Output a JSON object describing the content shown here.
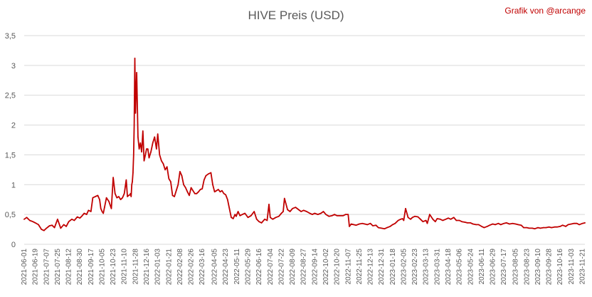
{
  "colors": {
    "series": "#c00000",
    "credit": "#c00000",
    "grid": "#d9d9d9",
    "text": "#595959"
  },
  "credit": "Grafik von @arcange",
  "chart_data": {
    "type": "line",
    "title": "HIVE Preis (USD)",
    "xlabel": "",
    "ylabel": "",
    "ylim": [
      0,
      3.5
    ],
    "grid": true,
    "legend": "none",
    "y_ticks": [
      "0",
      "0,5",
      "1",
      "1,5",
      "2",
      "2,5",
      "3",
      "3,5"
    ],
    "x_tick_labels": [
      "2021-06-01",
      "2021-06-19",
      "2021-07-07",
      "2021-07-25",
      "2021-08-12",
      "2021-08-30",
      "2021-09-17",
      "2021-10-05",
      "2021-10-23",
      "2021-11-10",
      "2021-11-28",
      "2021-12-16",
      "2022-01-03",
      "2022-01-21",
      "2022-02-08",
      "2022-02-26",
      "2022-03-16",
      "2022-04-05",
      "2022-04-23",
      "2022-05-11",
      "2022-05-29",
      "2022-06-16",
      "2022-07-04",
      "2022-07-22",
      "2022-08-09",
      "2022-08-27",
      "2022-09-14",
      "2022-10-02",
      "2022-10-20",
      "2022-11-07",
      "2022-11-25",
      "2022-12-13",
      "2022-12-31",
      "2023-01-18",
      "2023-02-05",
      "2023-02-23",
      "2023-03-13",
      "2023-03-31",
      "2023-04-18",
      "2023-05-06",
      "2023-05-24",
      "2023-06-11",
      "2023-06-29",
      "2023-07-17",
      "2023-08-05",
      "2023-08-23",
      "2023-09-10",
      "2023-09-28",
      "2023-10-16",
      "2023-11-03",
      "2023-11-21"
    ],
    "series": [
      {
        "color": "#c00000",
        "x": [
          "2021-06-01",
          "2021-06-05",
          "2021-06-10",
          "2021-06-15",
          "2021-06-19",
          "2021-06-24",
          "2021-06-29",
          "2021-07-03",
          "2021-07-07",
          "2021-07-12",
          "2021-07-16",
          "2021-07-20",
          "2021-07-25",
          "2021-07-30",
          "2021-08-04",
          "2021-08-08",
          "2021-08-12",
          "2021-08-17",
          "2021-08-21",
          "2021-08-26",
          "2021-08-30",
          "2021-09-02",
          "2021-09-06",
          "2021-09-10",
          "2021-09-13",
          "2021-09-17",
          "2021-09-20",
          "2021-09-24",
          "2021-09-28",
          "2021-10-01",
          "2021-10-03",
          "2021-10-05",
          "2021-10-07",
          "2021-10-09",
          "2021-10-12",
          "2021-10-16",
          "2021-10-20",
          "2021-10-23",
          "2021-10-26",
          "2021-10-29",
          "2021-11-01",
          "2021-11-04",
          "2021-11-07",
          "2021-11-10",
          "2021-11-13",
          "2021-11-15",
          "2021-11-17",
          "2021-11-19",
          "2021-11-20",
          "2021-11-21",
          "2021-11-22",
          "2021-11-23",
          "2021-11-24",
          "2021-11-25",
          "2021-11-26",
          "2021-11-27",
          "2021-11-28",
          "2021-11-30",
          "2021-12-02",
          "2021-12-04",
          "2021-12-06",
          "2021-12-08",
          "2021-12-10",
          "2021-12-12",
          "2021-12-14",
          "2021-12-16",
          "2021-12-18",
          "2021-12-20",
          "2021-12-23",
          "2021-12-26",
          "2021-12-29",
          "2022-01-01",
          "2022-01-03",
          "2022-01-06",
          "2022-01-09",
          "2022-01-12",
          "2022-01-15",
          "2022-01-18",
          "2022-01-21",
          "2022-01-24",
          "2022-01-27",
          "2022-01-30",
          "2022-02-02",
          "2022-02-05",
          "2022-02-08",
          "2022-02-11",
          "2022-02-14",
          "2022-02-17",
          "2022-02-20",
          "2022-02-23",
          "2022-02-26",
          "2022-03-01",
          "2022-03-04",
          "2022-03-07",
          "2022-03-10",
          "2022-03-13",
          "2022-03-16",
          "2022-03-19",
          "2022-03-22",
          "2022-03-26",
          "2022-03-30",
          "2022-04-02",
          "2022-04-05",
          "2022-04-08",
          "2022-04-11",
          "2022-04-14",
          "2022-04-17",
          "2022-04-20",
          "2022-04-23",
          "2022-04-26",
          "2022-04-29",
          "2022-05-02",
          "2022-05-05",
          "2022-05-08",
          "2022-05-10",
          "2022-05-11",
          "2022-05-13",
          "2022-05-16",
          "2022-05-20",
          "2022-05-24",
          "2022-05-29",
          "2022-06-03",
          "2022-06-08",
          "2022-06-12",
          "2022-06-16",
          "2022-06-20",
          "2022-06-25",
          "2022-06-29",
          "2022-07-02",
          "2022-07-04",
          "2022-07-08",
          "2022-07-13",
          "2022-07-18",
          "2022-07-22",
          "2022-07-25",
          "2022-07-27",
          "2022-08-01",
          "2022-08-05",
          "2022-08-09",
          "2022-08-14",
          "2022-08-19",
          "2022-08-23",
          "2022-08-27",
          "2022-09-01",
          "2022-09-06",
          "2022-09-10",
          "2022-09-14",
          "2022-09-19",
          "2022-09-24",
          "2022-09-28",
          "2022-10-02",
          "2022-10-07",
          "2022-10-12",
          "2022-10-16",
          "2022-10-20",
          "2022-10-25",
          "2022-10-30",
          "2022-11-03",
          "2022-11-07",
          "2022-11-09",
          "2022-11-12",
          "2022-11-16",
          "2022-11-20",
          "2022-11-25",
          "2022-11-30",
          "2022-12-04",
          "2022-12-08",
          "2022-12-13",
          "2022-12-17",
          "2022-12-22",
          "2022-12-26",
          "2022-12-31",
          "2023-01-05",
          "2023-01-09",
          "2023-01-14",
          "2023-01-18",
          "2023-01-22",
          "2023-01-27",
          "2023-01-31",
          "2023-02-03",
          "2023-02-05",
          "2023-02-08",
          "2023-02-12",
          "2023-02-16",
          "2023-02-19",
          "2023-02-23",
          "2023-02-28",
          "2023-03-04",
          "2023-03-08",
          "2023-03-13",
          "2023-03-15",
          "2023-03-19",
          "2023-03-24",
          "2023-03-28",
          "2023-03-31",
          "2023-04-05",
          "2023-04-09",
          "2023-04-14",
          "2023-04-18",
          "2023-04-22",
          "2023-04-27",
          "2023-05-01",
          "2023-05-06",
          "2023-05-10",
          "2023-05-15",
          "2023-05-19",
          "2023-05-24",
          "2023-05-28",
          "2023-06-02",
          "2023-06-06",
          "2023-06-11",
          "2023-06-15",
          "2023-06-20",
          "2023-06-24",
          "2023-06-29",
          "2023-07-03",
          "2023-07-08",
          "2023-07-12",
          "2023-07-17",
          "2023-07-21",
          "2023-07-26",
          "2023-07-31",
          "2023-08-05",
          "2023-08-09",
          "2023-08-14",
          "2023-08-18",
          "2023-08-23",
          "2023-08-27",
          "2023-09-01",
          "2023-09-05",
          "2023-09-10",
          "2023-09-14",
          "2023-09-19",
          "2023-09-23",
          "2023-09-28",
          "2023-10-02",
          "2023-10-07",
          "2023-10-11",
          "2023-10-16",
          "2023-10-20",
          "2023-10-25",
          "2023-10-29",
          "2023-11-03",
          "2023-11-07",
          "2023-11-12",
          "2023-11-16",
          "2023-11-21",
          "2023-11-25"
        ],
        "values": [
          0.42,
          0.45,
          0.4,
          0.38,
          0.36,
          0.33,
          0.25,
          0.23,
          0.27,
          0.31,
          0.32,
          0.28,
          0.42,
          0.27,
          0.33,
          0.3,
          0.38,
          0.42,
          0.4,
          0.46,
          0.44,
          0.47,
          0.52,
          0.5,
          0.57,
          0.55,
          0.78,
          0.8,
          0.82,
          0.75,
          0.6,
          0.55,
          0.52,
          0.62,
          0.78,
          0.72,
          0.6,
          1.12,
          0.85,
          0.78,
          0.8,
          0.75,
          0.78,
          0.85,
          1.08,
          0.8,
          0.82,
          0.83,
          0.85,
          0.8,
          1.0,
          1.05,
          1.2,
          1.5,
          2.0,
          3.12,
          2.2,
          2.88,
          1.8,
          1.6,
          1.7,
          1.55,
          1.9,
          1.4,
          1.5,
          1.6,
          1.6,
          1.45,
          1.55,
          1.7,
          1.8,
          1.6,
          1.85,
          1.5,
          1.4,
          1.35,
          1.25,
          1.3,
          1.1,
          1.05,
          0.82,
          0.8,
          0.9,
          1.0,
          1.22,
          1.15,
          1.0,
          0.95,
          0.88,
          0.82,
          0.95,
          0.9,
          0.85,
          0.85,
          0.88,
          0.92,
          0.93,
          1.08,
          1.15,
          1.18,
          1.2,
          1.0,
          0.88,
          0.9,
          0.92,
          0.88,
          0.9,
          0.85,
          0.83,
          0.75,
          0.6,
          0.45,
          0.43,
          0.5,
          0.47,
          0.5,
          0.55,
          0.48,
          0.5,
          0.52,
          0.45,
          0.48,
          0.55,
          0.42,
          0.38,
          0.36,
          0.42,
          0.4,
          0.67,
          0.45,
          0.42,
          0.45,
          0.47,
          0.52,
          0.55,
          0.77,
          0.58,
          0.55,
          0.6,
          0.62,
          0.58,
          0.55,
          0.57,
          0.55,
          0.52,
          0.5,
          0.52,
          0.5,
          0.52,
          0.55,
          0.5,
          0.47,
          0.48,
          0.5,
          0.48,
          0.48,
          0.48,
          0.5,
          0.5,
          0.3,
          0.34,
          0.33,
          0.32,
          0.34,
          0.35,
          0.34,
          0.33,
          0.35,
          0.31,
          0.32,
          0.28,
          0.27,
          0.26,
          0.28,
          0.3,
          0.33,
          0.35,
          0.4,
          0.42,
          0.43,
          0.4,
          0.6,
          0.45,
          0.42,
          0.45,
          0.47,
          0.46,
          0.42,
          0.38,
          0.4,
          0.35,
          0.5,
          0.42,
          0.38,
          0.43,
          0.42,
          0.4,
          0.42,
          0.44,
          0.42,
          0.45,
          0.4,
          0.4,
          0.38,
          0.37,
          0.36,
          0.36,
          0.34,
          0.33,
          0.33,
          0.3,
          0.28,
          0.3,
          0.32,
          0.34,
          0.33,
          0.35,
          0.33,
          0.35,
          0.36,
          0.34,
          0.35,
          0.34,
          0.33,
          0.32,
          0.28,
          0.28,
          0.27,
          0.27,
          0.26,
          0.28,
          0.27,
          0.28,
          0.28,
          0.29,
          0.28,
          0.29,
          0.29,
          0.3,
          0.32,
          0.3,
          0.33,
          0.34,
          0.35,
          0.35,
          0.33,
          0.35,
          0.36
        ]
      }
    ]
  }
}
